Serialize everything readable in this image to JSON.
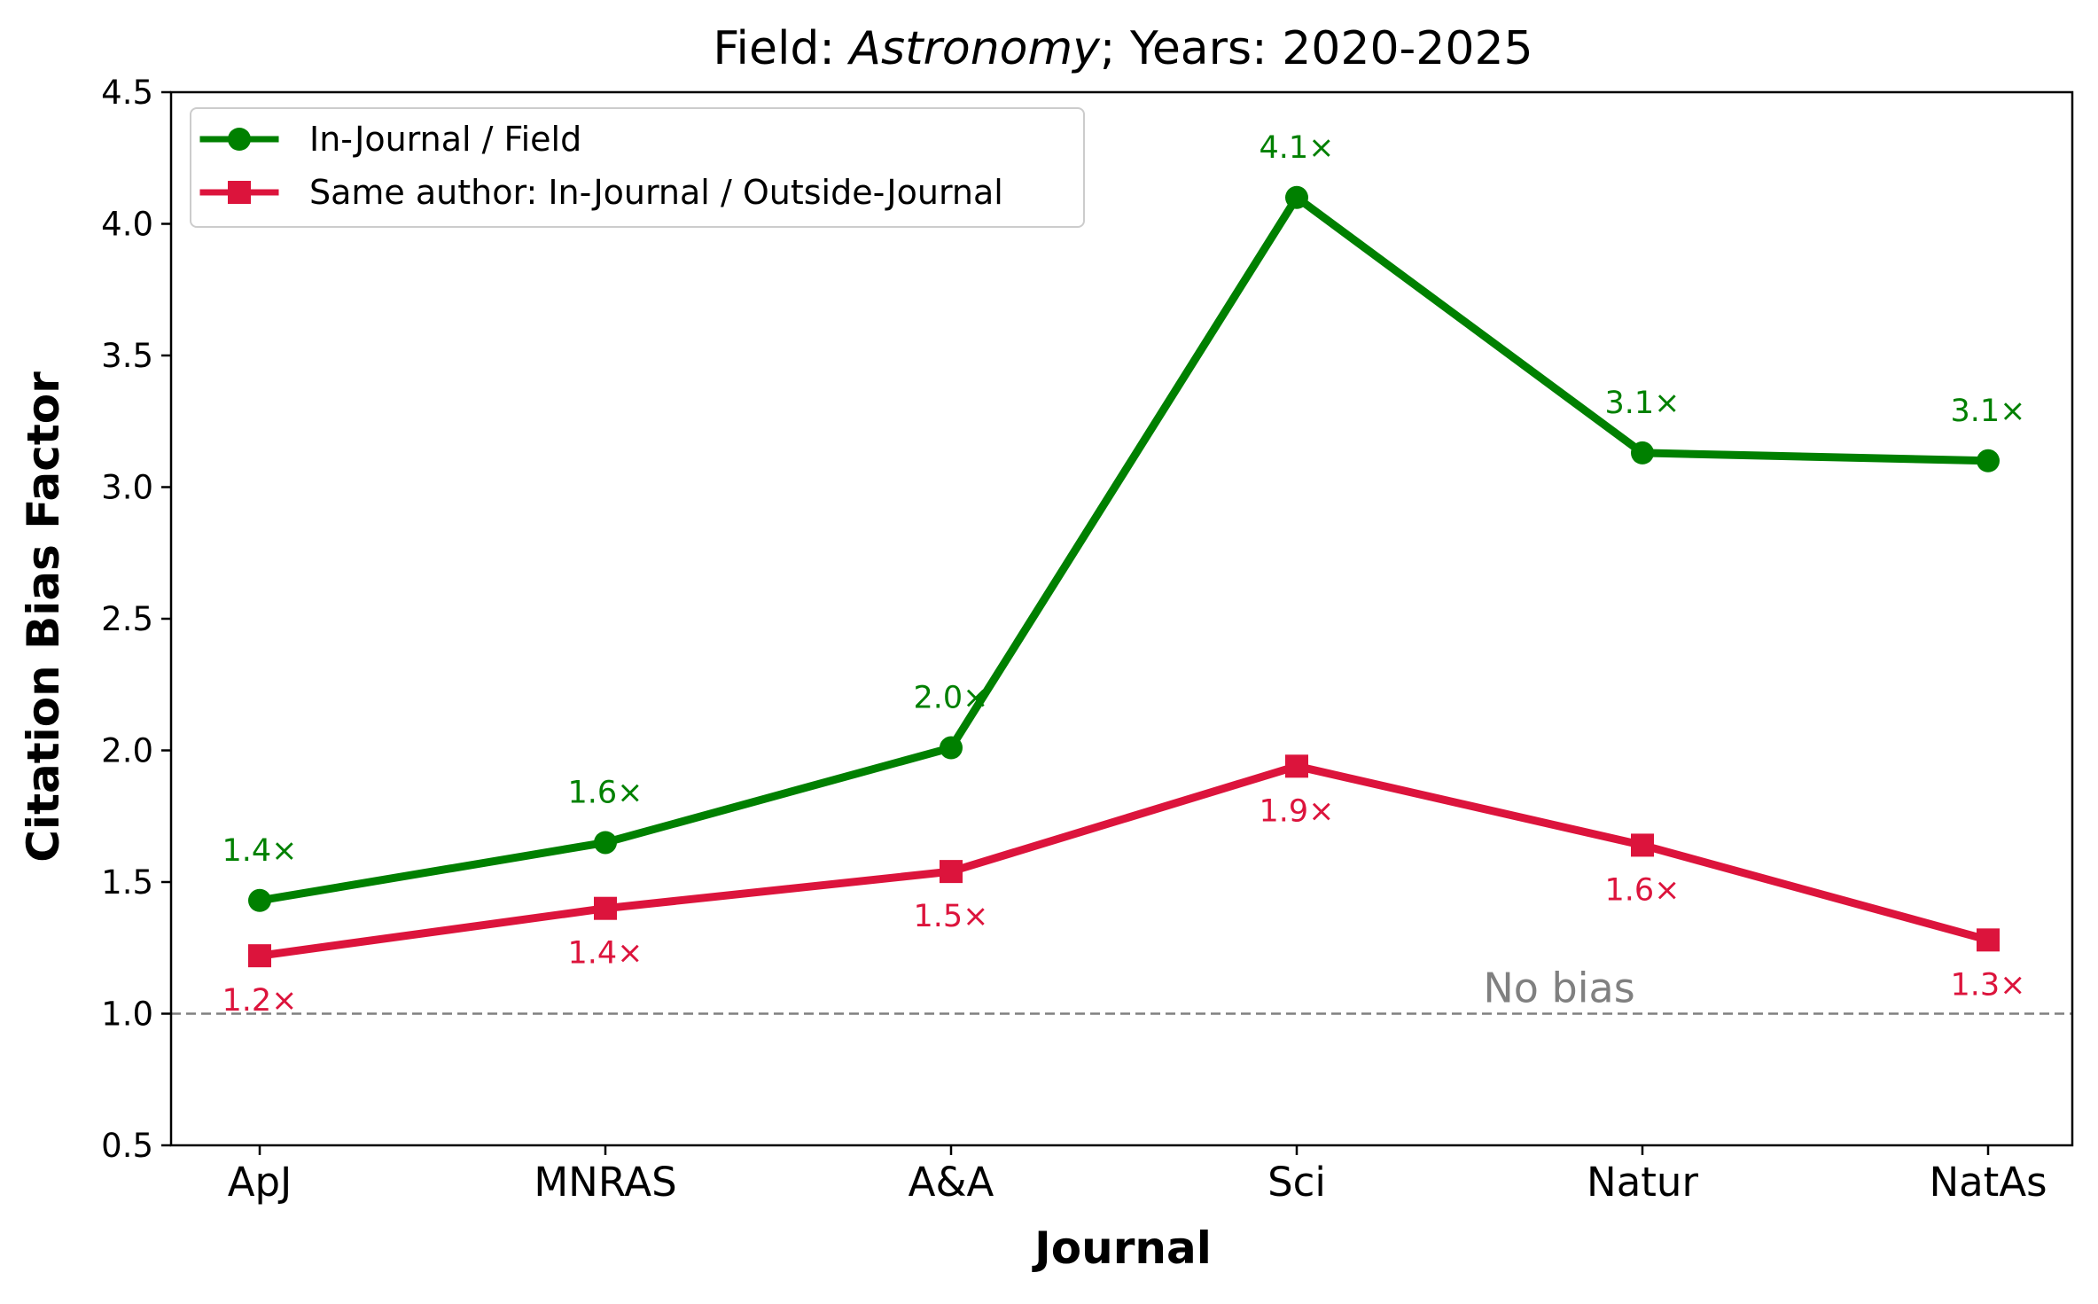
{
  "chart_data": {
    "type": "line",
    "title": {
      "prefix": "Field: ",
      "field": "Astronomy",
      "suffix": "; Years: 2020-2025"
    },
    "xlabel": "Journal",
    "ylabel": "Citation Bias Factor",
    "categories": [
      "ApJ",
      "MNRAS",
      "A&A",
      "Sci",
      "Natur",
      "NatAs"
    ],
    "ylim": [
      0.5,
      4.5
    ],
    "yticks": [
      "0.5",
      "1.0",
      "1.5",
      "2.0",
      "2.5",
      "3.0",
      "3.5",
      "4.0",
      "4.5"
    ],
    "grid": false,
    "legend_position": "top-left",
    "series": [
      {
        "name": "In-Journal / Field",
        "color": "#008000",
        "marker": "circle",
        "values": [
          1.43,
          1.65,
          2.01,
          4.1,
          3.13,
          3.1
        ],
        "labels": [
          "1.4×",
          "1.6×",
          "2.0×",
          "4.1×",
          "3.1×",
          "3.1×"
        ],
        "label_position": "above"
      },
      {
        "name": "Same author: In-Journal / Outside-Journal",
        "color": "#dc143c",
        "marker": "square",
        "values": [
          1.22,
          1.4,
          1.54,
          1.94,
          1.64,
          1.28
        ],
        "labels": [
          "1.2×",
          "1.4×",
          "1.5×",
          "1.9×",
          "1.6×",
          "1.3×"
        ],
        "label_position": "below"
      }
    ],
    "reference_line": {
      "y": 1.0,
      "label": "No bias",
      "color": "#808080"
    }
  }
}
